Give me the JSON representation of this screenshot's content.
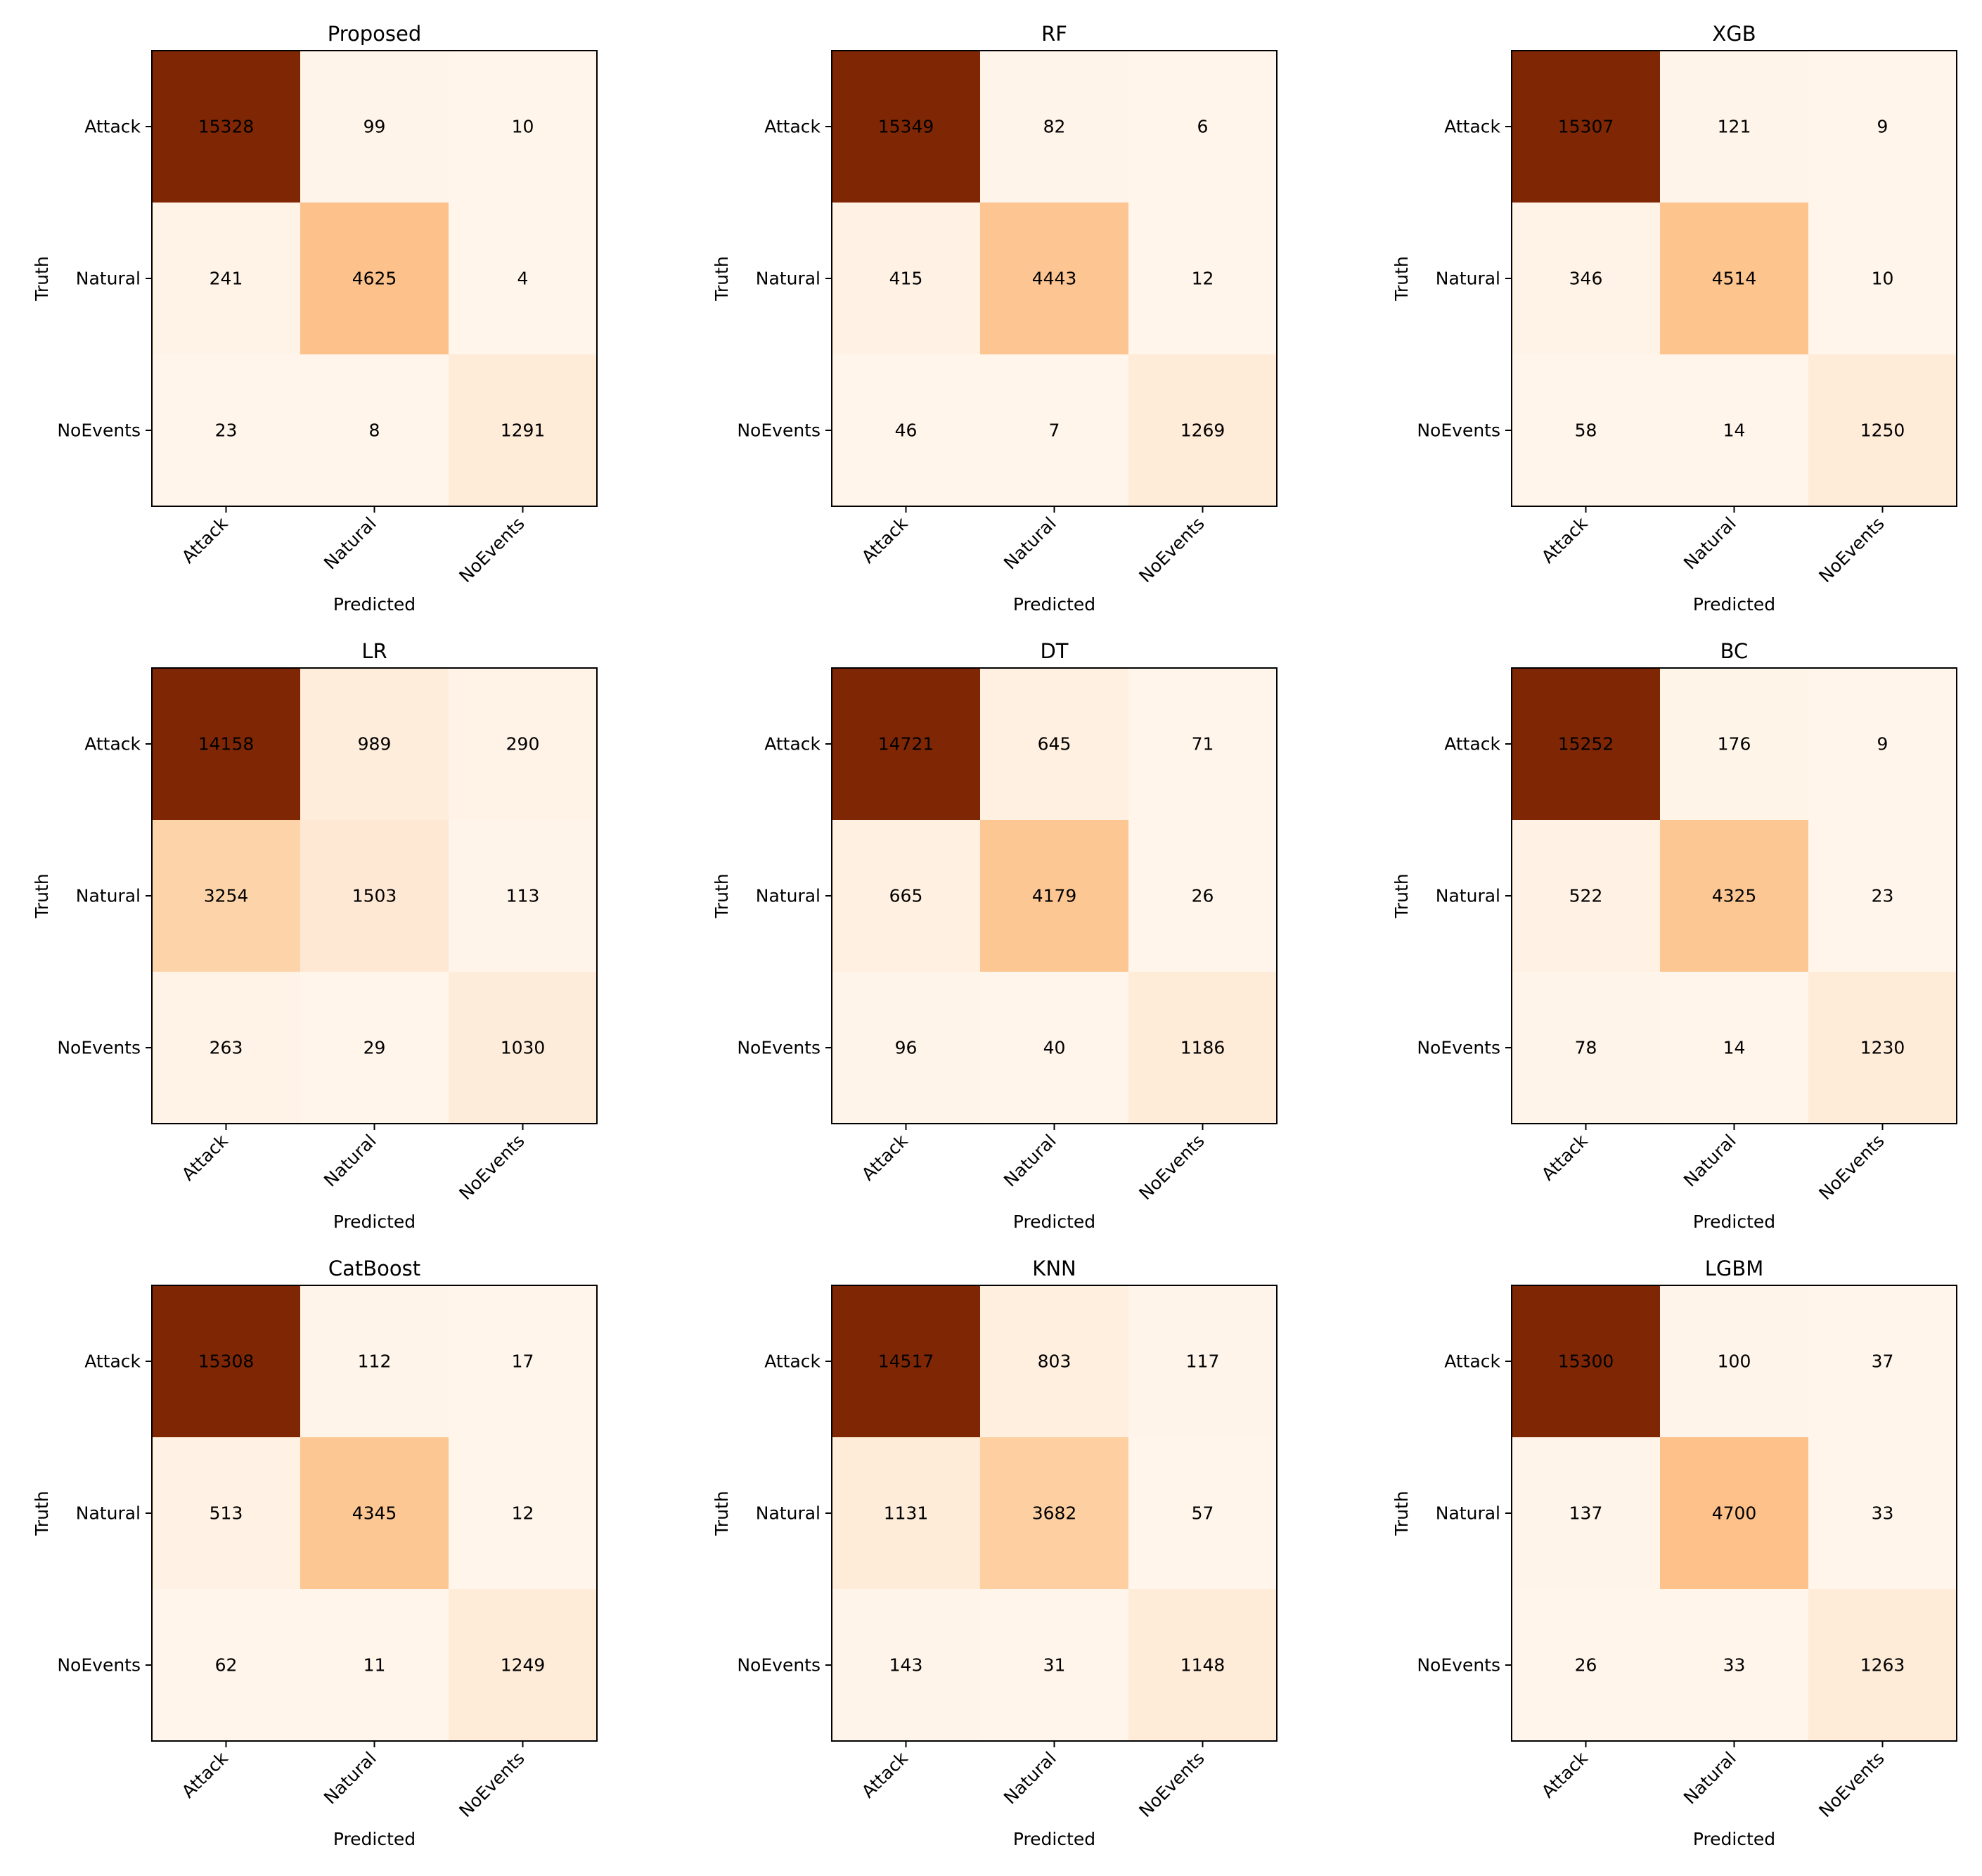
{
  "chart_data": [
    {
      "type": "heatmap",
      "title": "Proposed",
      "xlabel": "Predicted",
      "ylabel": "Truth",
      "x_categories": [
        "Attack",
        "Natural",
        "NoEvents"
      ],
      "y_categories": [
        "Attack",
        "Natural",
        "NoEvents"
      ],
      "values": [
        [
          15328,
          99,
          10
        ],
        [
          241,
          4625,
          4
        ],
        [
          23,
          8,
          1291
        ]
      ],
      "colormap": "Oranges"
    },
    {
      "type": "heatmap",
      "title": "RF",
      "xlabel": "Predicted",
      "ylabel": "Truth",
      "x_categories": [
        "Attack",
        "Natural",
        "NoEvents"
      ],
      "y_categories": [
        "Attack",
        "Natural",
        "NoEvents"
      ],
      "values": [
        [
          15349,
          82,
          6
        ],
        [
          415,
          4443,
          12
        ],
        [
          46,
          7,
          1269
        ]
      ],
      "colormap": "Oranges"
    },
    {
      "type": "heatmap",
      "title": "XGB",
      "xlabel": "Predicted",
      "ylabel": "Truth",
      "x_categories": [
        "Attack",
        "Natural",
        "NoEvents"
      ],
      "y_categories": [
        "Attack",
        "Natural",
        "NoEvents"
      ],
      "values": [
        [
          15307,
          121,
          9
        ],
        [
          346,
          4514,
          10
        ],
        [
          58,
          14,
          1250
        ]
      ],
      "colormap": "Oranges"
    },
    {
      "type": "heatmap",
      "title": "LR",
      "xlabel": "Predicted",
      "ylabel": "Truth",
      "x_categories": [
        "Attack",
        "Natural",
        "NoEvents"
      ],
      "y_categories": [
        "Attack",
        "Natural",
        "NoEvents"
      ],
      "values": [
        [
          14158,
          989,
          290
        ],
        [
          3254,
          1503,
          113
        ],
        [
          263,
          29,
          1030
        ]
      ],
      "colormap": "Oranges"
    },
    {
      "type": "heatmap",
      "title": "DT",
      "xlabel": "Predicted",
      "ylabel": "Truth",
      "x_categories": [
        "Attack",
        "Natural",
        "NoEvents"
      ],
      "y_categories": [
        "Attack",
        "Natural",
        "NoEvents"
      ],
      "values": [
        [
          14721,
          645,
          71
        ],
        [
          665,
          4179,
          26
        ],
        [
          96,
          40,
          1186
        ]
      ],
      "colormap": "Oranges"
    },
    {
      "type": "heatmap",
      "title": "BC",
      "xlabel": "Predicted",
      "ylabel": "Truth",
      "x_categories": [
        "Attack",
        "Natural",
        "NoEvents"
      ],
      "y_categories": [
        "Attack",
        "Natural",
        "NoEvents"
      ],
      "values": [
        [
          15252,
          176,
          9
        ],
        [
          522,
          4325,
          23
        ],
        [
          78,
          14,
          1230
        ]
      ],
      "colormap": "Oranges"
    },
    {
      "type": "heatmap",
      "title": "CatBoost",
      "xlabel": "Predicted",
      "ylabel": "Truth",
      "x_categories": [
        "Attack",
        "Natural",
        "NoEvents"
      ],
      "y_categories": [
        "Attack",
        "Natural",
        "NoEvents"
      ],
      "values": [
        [
          15308,
          112,
          17
        ],
        [
          513,
          4345,
          12
        ],
        [
          62,
          11,
          1249
        ]
      ],
      "colormap": "Oranges"
    },
    {
      "type": "heatmap",
      "title": "KNN",
      "xlabel": "Predicted",
      "ylabel": "Truth",
      "x_categories": [
        "Attack",
        "Natural",
        "NoEvents"
      ],
      "y_categories": [
        "Attack",
        "Natural",
        "NoEvents"
      ],
      "values": [
        [
          14517,
          803,
          117
        ],
        [
          1131,
          3682,
          57
        ],
        [
          143,
          31,
          1148
        ]
      ],
      "colormap": "Oranges"
    },
    {
      "type": "heatmap",
      "title": "LGBM",
      "xlabel": "Predicted",
      "ylabel": "Truth",
      "x_categories": [
        "Attack",
        "Natural",
        "NoEvents"
      ],
      "y_categories": [
        "Attack",
        "Natural",
        "NoEvents"
      ],
      "values": [
        [
          15300,
          100,
          37
        ],
        [
          137,
          4700,
          33
        ],
        [
          26,
          33,
          1263
        ]
      ],
      "colormap": "Oranges"
    }
  ]
}
